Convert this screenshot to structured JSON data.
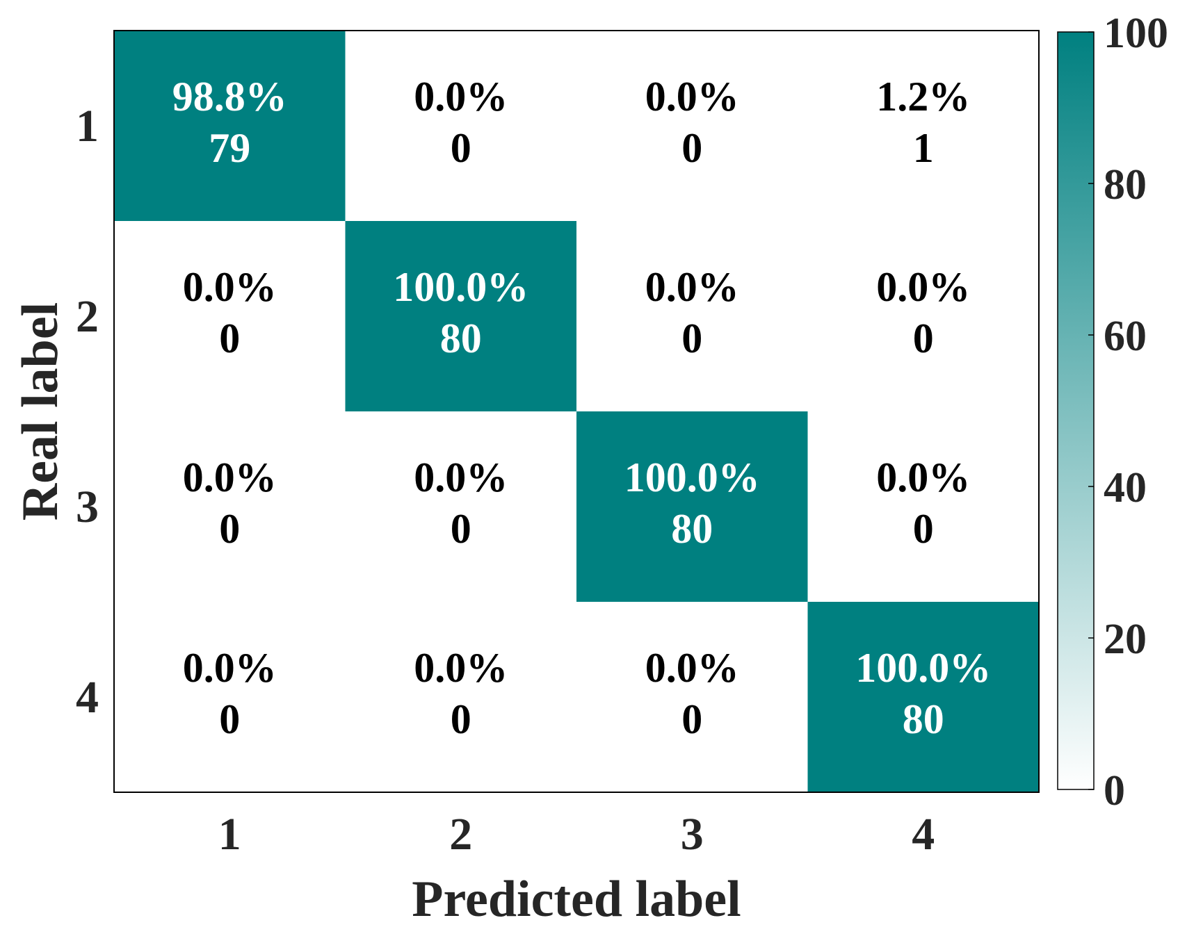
{
  "chart_data": {
    "type": "heatmap",
    "title": "",
    "xlabel": "Predicted label",
    "ylabel": "Real label",
    "x_categories": [
      "1",
      "2",
      "3",
      "4"
    ],
    "y_categories": [
      "1",
      "2",
      "3",
      "4"
    ],
    "percentages": [
      [
        "98.8%",
        "0.0%",
        "0.0%",
        "1.2%"
      ],
      [
        "0.0%",
        "100.0%",
        "0.0%",
        "0.0%"
      ],
      [
        "0.0%",
        "0.0%",
        "100.0%",
        "0.0%"
      ],
      [
        "0.0%",
        "0.0%",
        "0.0%",
        "100.0%"
      ]
    ],
    "counts": [
      [
        79,
        0,
        0,
        1
      ],
      [
        0,
        80,
        0,
        0
      ],
      [
        0,
        0,
        80,
        0
      ],
      [
        0,
        0,
        0,
        80
      ]
    ],
    "colorbar": {
      "range": [
        0,
        100
      ],
      "ticks": [
        "0",
        "20",
        "40",
        "60",
        "80",
        "100"
      ],
      "color_low": "#ffffff",
      "color_high": "#008080"
    },
    "colors": {
      "highlight_cell": "#008080",
      "highlight_text": "#ffffff",
      "normal_text": "#000000"
    }
  }
}
